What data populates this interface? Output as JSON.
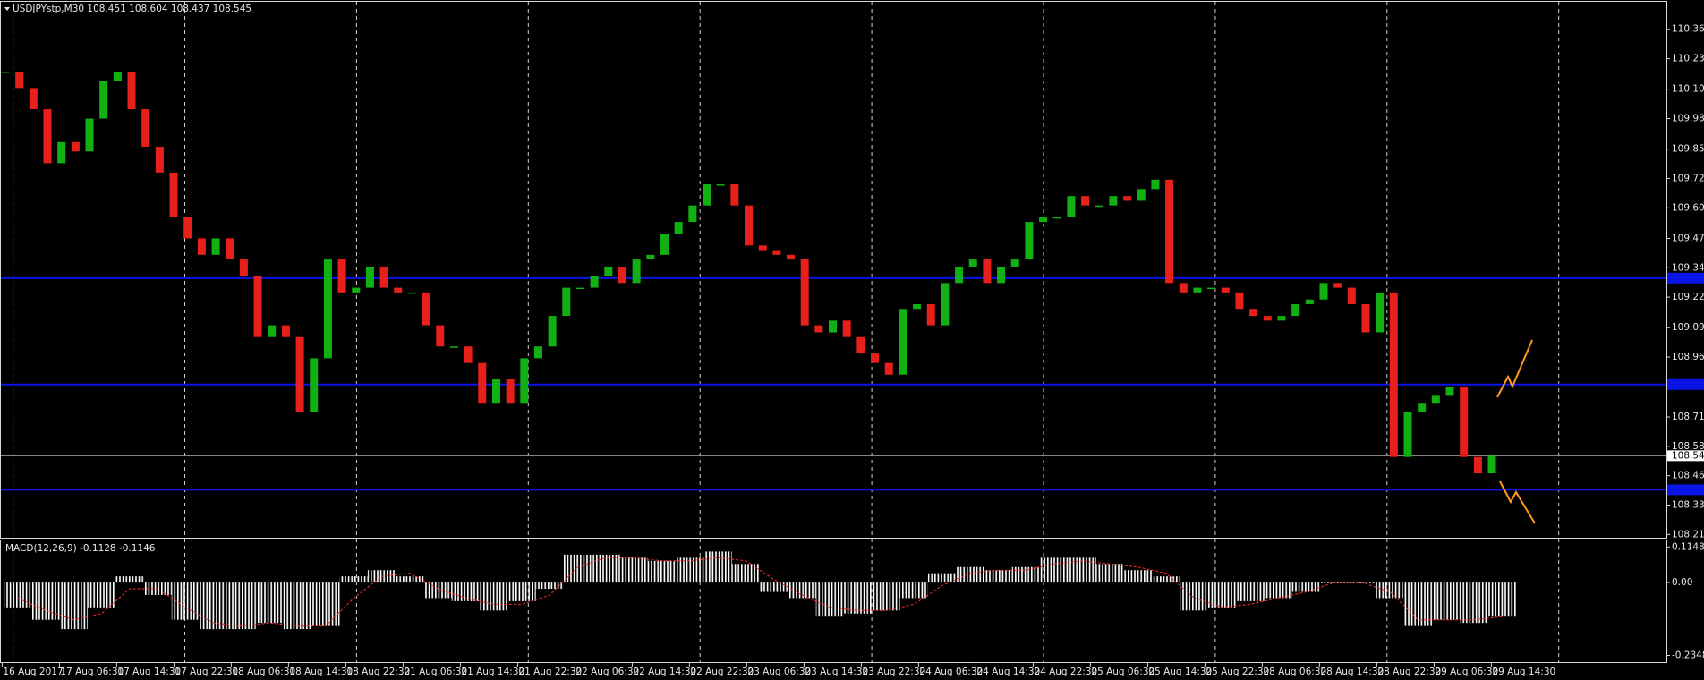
{
  "chart_data": [
    {
      "type": "candlestick",
      "title": "USDJPYstp,M30  108.451 108.604 108.437 108.545",
      "values": [
        110.18,
        110.11,
        110.02,
        109.79,
        109.88,
        109.84,
        109.98,
        110.14,
        110.18,
        110.02,
        109.86,
        109.75,
        109.56,
        109.47,
        109.4,
        109.47,
        109.38,
        109.31,
        109.05,
        109.1,
        109.05,
        108.73,
        108.96,
        109.38,
        109.24,
        109.26,
        109.35,
        109.26,
        109.24,
        109.24,
        109.1,
        109.01,
        109.01,
        108.94,
        108.77,
        108.87,
        108.77,
        108.96,
        109.01,
        109.14,
        109.26,
        109.26,
        109.31,
        109.35,
        109.28,
        109.38,
        109.4,
        109.49,
        109.54,
        109.61,
        109.7,
        109.7,
        109.61,
        109.44,
        109.42,
        109.4,
        109.38,
        109.1,
        109.07,
        109.12,
        109.05,
        108.98,
        108.94,
        108.89,
        109.17,
        109.19,
        109.1,
        109.28,
        109.35,
        109.38,
        109.28,
        109.35,
        109.38,
        109.54,
        109.56,
        109.56,
        109.65,
        109.61,
        109.61,
        109.65,
        109.63,
        109.68,
        109.72,
        109.28,
        109.24,
        109.26,
        109.26,
        109.24,
        109.17,
        109.14,
        109.12,
        109.14,
        109.19,
        109.21,
        109.28,
        109.26,
        109.19,
        109.07,
        109.24,
        108.54,
        108.73,
        108.77,
        108.8,
        108.84,
        108.54,
        108.47,
        108.545
      ],
      "up_color": "#12b012",
      "down_color": "#e8201c",
      "ylim": [
        108.196,
        110.477
      ],
      "yticks": [
        {
          "value": 110.36,
          "label": "110.360"
        },
        110.235,
        110.105,
        {
          "value": 109.98,
          "label": "109.980"
        },
        {
          "value": 109.85,
          "label": "109.850"
        },
        109.725,
        {
          "value": 109.6,
          "label": "109.600"
        },
        {
          "value": 109.47,
          "label": "109.470"
        },
        109.345,
        {
          "value": 109.22,
          "label": "109.220"
        },
        {
          "value": 109.09,
          "label": "109.090"
        },
        108.965,
        {
          "value": 108.71,
          "label": "108.710"
        },
        108.585,
        {
          "value": 108.46,
          "label": "108.460"
        },
        108.335,
        {
          "value": 108.21,
          "label": "108.210"
        }
      ],
      "levels": [
        109.301,
        108.848,
        108.4
      ],
      "level_color": "#0a14e6",
      "last_price": 108.545,
      "time_labels": [
        "16 Aug 2017",
        "17 Aug 06:30",
        "17 Aug 14:30",
        "17 Aug 22:30",
        "18 Aug 06:30",
        "18 Aug 14:30",
        "18 Aug 22:30",
        "21 Aug 06:30",
        "21 Aug 14:30",
        "21 Aug 22:30",
        "22 Aug 06:30",
        "22 Aug 14:30",
        "22 Aug 22:30",
        "23 Aug 06:30",
        "23 Aug 14:30",
        "23 Aug 22:30",
        "24 Aug 06:30",
        "24 Aug 14:30",
        "24 Aug 22:30",
        "25 Aug 06:30",
        "25 Aug 14:30",
        "25 Aug 22:30",
        "28 Aug 06:30",
        "28 Aug 14:30",
        "28 Aug 22:30",
        "29 Aug 06:30",
        "29 Aug 14:30"
      ]
    },
    {
      "type": "bar",
      "title": "MACD(12,26,9) -0.1128 -0.1146",
      "values": [
        -0.08,
        -0.12,
        -0.15,
        -0.08,
        0.02,
        -0.04,
        -0.12,
        -0.15,
        -0.15,
        -0.13,
        -0.15,
        -0.14,
        0.02,
        0.04,
        0.02,
        -0.05,
        -0.06,
        -0.09,
        -0.06,
        -0.02,
        0.09,
        0.09,
        0.08,
        0.07,
        0.08,
        0.1,
        0.06,
        -0.03,
        -0.05,
        -0.11,
        -0.1,
        -0.09,
        -0.05,
        0.03,
        0.05,
        0.04,
        0.05,
        0.08,
        0.08,
        0.06,
        0.04,
        0.02,
        -0.09,
        -0.08,
        -0.06,
        -0.05,
        -0.03,
        0.0,
        0.0,
        -0.05,
        -0.14,
        -0.12,
        -0.13,
        -0.11
      ],
      "signal_values": [
        -0.05,
        -0.09,
        -0.12,
        -0.1,
        -0.02,
        -0.02,
        -0.08,
        -0.13,
        -0.14,
        -0.13,
        -0.14,
        -0.14,
        -0.05,
        0.02,
        0.03,
        -0.02,
        -0.05,
        -0.07,
        -0.07,
        -0.04,
        0.05,
        0.08,
        0.08,
        0.07,
        0.07,
        0.08,
        0.07,
        0.01,
        -0.04,
        -0.08,
        -0.09,
        -0.09,
        -0.07,
        -0.01,
        0.03,
        0.04,
        0.04,
        0.06,
        0.07,
        0.06,
        0.05,
        0.03,
        -0.05,
        -0.08,
        -0.07,
        -0.05,
        -0.03,
        0.0,
        0.0,
        -0.03,
        -0.12,
        -0.12,
        -0.12,
        -0.11
      ],
      "color": "#ffffff",
      "signal_color": "#ff2a2a",
      "ylim": [
        -0.2593,
        0.1358
      ],
      "yticks": [
        0.1148,
        {
          "value": 0,
          "label": "0.00"
        },
        -0.2348
      ]
    }
  ]
}
